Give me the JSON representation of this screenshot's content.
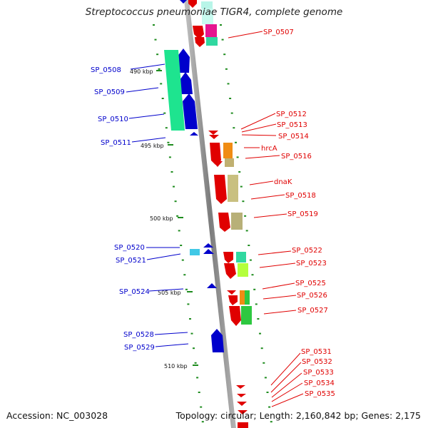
{
  "title": "Streptococcus pneumoniae TIGR4, complete genome",
  "footer": {
    "accession": "Accession: NC_003028",
    "topology": "Topology: circular; Length: 2,160,842 bp; Genes: 2,175"
  },
  "scale_labels": [
    "490 kbp",
    "495 kbp",
    "500 kbp",
    "505 kbp",
    "510 kbp"
  ],
  "left_labels": [
    "SP_0508",
    "SP_0509",
    "SP_0510",
    "SP_0511",
    "SP_0520",
    "SP_0521",
    "SP_0524",
    "SP_0528",
    "SP_0529"
  ],
  "right_labels": [
    "SP_0507",
    "SP_0512",
    "SP_0513",
    "SP_0514",
    "hrcA",
    "SP_0516",
    "dnaK",
    "SP_0518",
    "SP_0519",
    "SP_0522",
    "SP_0523",
    "SP_0525",
    "SP_0526",
    "SP_0527",
    "SP_0531",
    "SP_0532",
    "SP_0533",
    "SP_0534",
    "SP_0535"
  ],
  "colors": {
    "forward_strand": "#0000cc",
    "reverse_strand": "#e00000",
    "backbone": "#999999",
    "tick": "#1e8c1e"
  }
}
